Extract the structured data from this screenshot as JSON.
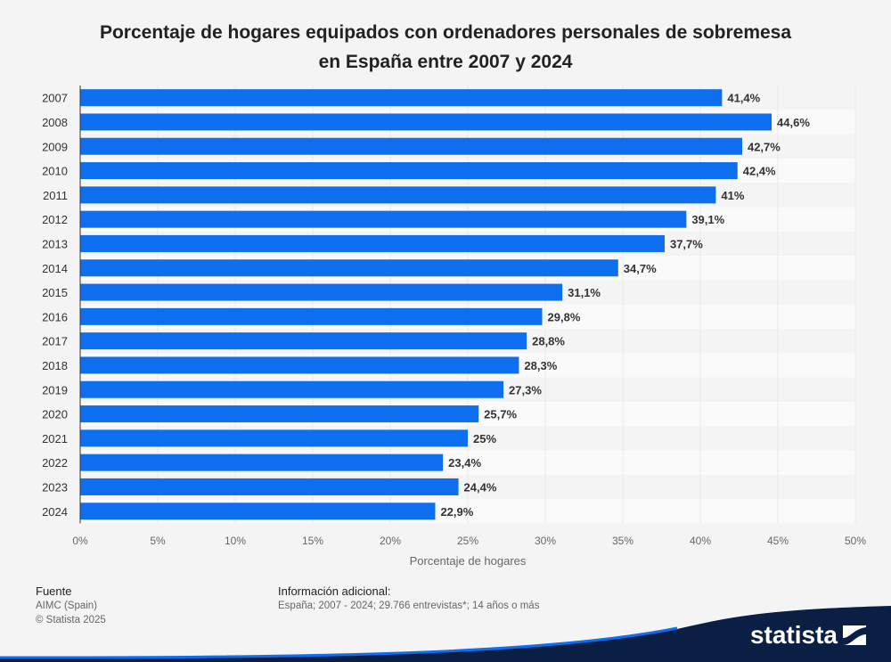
{
  "title_line1": "Porcentaje de hogares equipados con ordenadores personales de sobremesa",
  "title_line2": "en España entre 2007 y 2024",
  "chart_data": {
    "type": "bar",
    "orientation": "horizontal",
    "categories": [
      "2007",
      "2008",
      "2009",
      "2010",
      "2011",
      "2012",
      "2013",
      "2014",
      "2015",
      "2016",
      "2017",
      "2018",
      "2019",
      "2020",
      "2021",
      "2022",
      "2023",
      "2024"
    ],
    "values": [
      41.4,
      44.6,
      42.7,
      42.4,
      41,
      39.1,
      37.7,
      34.7,
      31.1,
      29.8,
      28.8,
      28.3,
      27.3,
      25.7,
      25,
      23.4,
      24.4,
      22.9
    ],
    "value_labels": [
      "41,4%",
      "44,6%",
      "42,7%",
      "42,4%",
      "41%",
      "39,1%",
      "37,7%",
      "34,7%",
      "31,1%",
      "29,8%",
      "28,8%",
      "28,3%",
      "27,3%",
      "25,7%",
      "25%",
      "23,4%",
      "24,4%",
      "22,9%"
    ],
    "xlabel": "Porcentaje de hogares",
    "xlim": [
      0,
      50
    ],
    "xticks": [
      0,
      5,
      10,
      15,
      20,
      25,
      30,
      35,
      40,
      45,
      50
    ],
    "xtick_labels": [
      "0%",
      "5%",
      "10%",
      "15%",
      "20%",
      "25%",
      "30%",
      "35%",
      "40%",
      "45%",
      "50%"
    ],
    "grid": true,
    "bar_color": "#0e6ef0"
  },
  "footer": {
    "source_label": "Fuente",
    "source_line1": "AIMC (Spain)",
    "source_line2": "© Statista 2025",
    "info_label": "Información adicional:",
    "info_text": "España; 2007 - 2024; 29.766 entrevistas*; 14 años o más"
  },
  "brand": {
    "name": "statista",
    "color": "#0a1f44"
  }
}
